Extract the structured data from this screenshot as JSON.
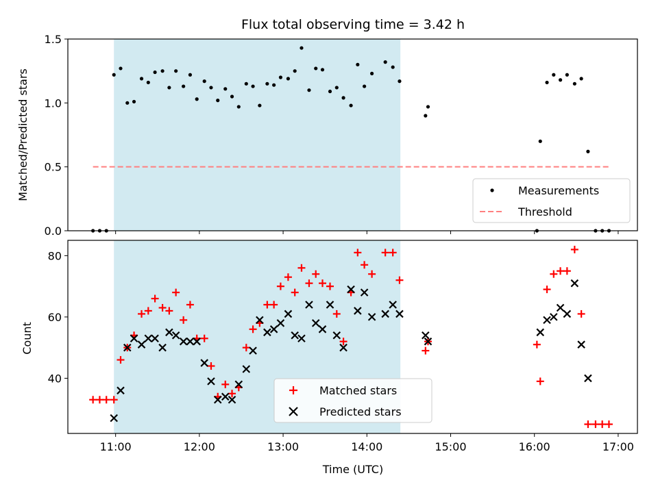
{
  "chart_data": [
    {
      "type": "scatter",
      "title": "Flux total observing time = 3.42 h",
      "xlabel": "",
      "ylabel": "Matched/Predicted stars",
      "ylim": [
        0,
        1.5
      ],
      "yticks": [
        "0.0",
        "0.5",
        "1.0",
        "1.5"
      ],
      "xlim_hours": [
        10.43,
        17.23
      ],
      "xticks": [
        "11:00",
        "12:00",
        "13:00",
        "14:00",
        "15:00",
        "16:00",
        "17:00"
      ],
      "show_xtick_labels": false,
      "shaded_span": [
        10.98,
        14.4
      ],
      "shade_color": "#add8e6",
      "legend_position": "lower right",
      "series": [
        {
          "name": "Measurements",
          "marker": "dot",
          "color": "#000000",
          "x": [
            10.73,
            10.81,
            10.89,
            10.98,
            11.06,
            11.14,
            11.22,
            11.31,
            11.39,
            11.47,
            11.56,
            11.64,
            11.72,
            11.81,
            11.89,
            11.97,
            12.06,
            12.14,
            12.22,
            12.31,
            12.39,
            12.47,
            12.56,
            12.64,
            12.72,
            12.81,
            12.89,
            12.97,
            13.06,
            13.14,
            13.22,
            13.31,
            13.39,
            13.47,
            13.56,
            13.64,
            13.72,
            13.81,
            13.89,
            13.97,
            14.06,
            14.22,
            14.31,
            14.39,
            14.7,
            14.73,
            16.03,
            16.07,
            16.15,
            16.23,
            16.31,
            16.39,
            16.48,
            16.56,
            16.64,
            16.73,
            16.81,
            16.89
          ],
          "y": [
            0,
            0,
            0,
            1.22,
            1.27,
            1.0,
            1.01,
            1.19,
            1.16,
            1.24,
            1.25,
            1.12,
            1.25,
            1.13,
            1.22,
            1.03,
            1.17,
            1.12,
            1.02,
            1.11,
            1.05,
            0.97,
            1.15,
            1.13,
            0.98,
            1.15,
            1.14,
            1.2,
            1.19,
            1.25,
            1.43,
            1.1,
            1.27,
            1.26,
            1.09,
            1.12,
            1.04,
            0.98,
            1.3,
            1.13,
            1.23,
            1.32,
            1.28,
            1.17,
            0.9,
            0.97,
            0,
            0.7,
            1.16,
            1.22,
            1.18,
            1.22,
            1.15,
            1.19,
            0.62,
            0,
            0,
            0
          ]
        },
        {
          "name": "Threshold",
          "line_style": "dashed",
          "color": "#ff7f7f",
          "x": [
            10.73,
            16.89
          ],
          "y": [
            0.5,
            0.5
          ]
        }
      ]
    },
    {
      "type": "scatter",
      "title": "",
      "xlabel": "Time (UTC)",
      "ylabel": "Count",
      "ylim": [
        22,
        85
      ],
      "yticks": [
        "40",
        "60",
        "80"
      ],
      "xlim_hours": [
        10.43,
        17.23
      ],
      "xticks": [
        "11:00",
        "12:00",
        "13:00",
        "14:00",
        "15:00",
        "16:00",
        "17:00"
      ],
      "show_xtick_labels": true,
      "shaded_span": [
        10.98,
        14.4
      ],
      "shade_color": "#add8e6",
      "legend_position": "lower center",
      "series": [
        {
          "name": "Matched stars",
          "marker": "plus",
          "color": "#ff0000",
          "x": [
            10.73,
            10.81,
            10.89,
            10.98,
            11.06,
            11.14,
            11.22,
            11.31,
            11.39,
            11.47,
            11.56,
            11.64,
            11.72,
            11.81,
            11.89,
            11.97,
            12.06,
            12.14,
            12.22,
            12.31,
            12.39,
            12.47,
            12.56,
            12.64,
            12.72,
            12.81,
            12.89,
            12.97,
            13.06,
            13.14,
            13.22,
            13.31,
            13.39,
            13.47,
            13.56,
            13.64,
            13.72,
            13.81,
            13.89,
            13.97,
            14.06,
            14.22,
            14.31,
            14.39,
            14.7,
            14.73,
            16.03,
            16.07,
            16.15,
            16.23,
            16.31,
            16.39,
            16.48,
            16.56,
            16.64,
            16.73,
            16.81,
            16.89
          ],
          "y": [
            33,
            33,
            33,
            33,
            46,
            50,
            54,
            61,
            62,
            66,
            63,
            62,
            68,
            59,
            64,
            53,
            53,
            44,
            34,
            38,
            35,
            37,
            50,
            56,
            58,
            64,
            64,
            70,
            73,
            68,
            76,
            71,
            74,
            71,
            70,
            61,
            52,
            68,
            81,
            77,
            74,
            81,
            81,
            72,
            49,
            52,
            51,
            39,
            69,
            74,
            75,
            75,
            82,
            61,
            25,
            25,
            25,
            25
          ]
        },
        {
          "name": "Predicted stars",
          "marker": "x",
          "color": "#000000",
          "x": [
            10.98,
            11.06,
            11.14,
            11.22,
            11.31,
            11.39,
            11.47,
            11.56,
            11.64,
            11.72,
            11.81,
            11.89,
            11.97,
            12.06,
            12.14,
            12.22,
            12.31,
            12.39,
            12.47,
            12.56,
            12.64,
            12.72,
            12.81,
            12.89,
            12.97,
            13.06,
            13.14,
            13.22,
            13.31,
            13.39,
            13.47,
            13.56,
            13.64,
            13.72,
            13.81,
            13.89,
            13.97,
            14.06,
            14.22,
            14.31,
            14.39,
            14.7,
            14.73,
            16.07,
            16.15,
            16.23,
            16.31,
            16.39,
            16.48,
            16.56,
            16.64
          ],
          "y": [
            27,
            36,
            50,
            53,
            51,
            53,
            53,
            50,
            55,
            54,
            52,
            52,
            52,
            45,
            39,
            33,
            34,
            33,
            38,
            43,
            49,
            59,
            55,
            56,
            58,
            61,
            54,
            53,
            64,
            58,
            56,
            64,
            54,
            50,
            69,
            62,
            68,
            60,
            61,
            64,
            61,
            54,
            52,
            55,
            59,
            60,
            63,
            61,
            71,
            51,
            40
          ]
        }
      ]
    }
  ]
}
